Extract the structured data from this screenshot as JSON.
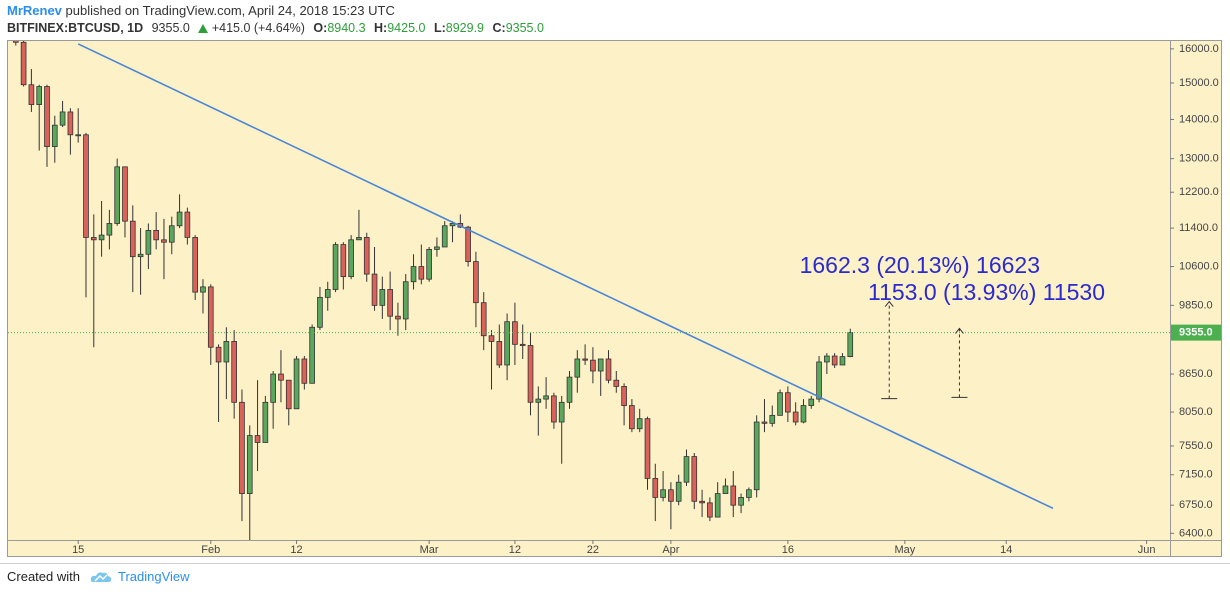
{
  "header": {
    "author": "MrRenev",
    "published": "published on TradingView.com, April 24, 2018 15:23 UTC",
    "symbol": "BITFINEX:BTCUSD, 1D",
    "last": "9355.0",
    "change": "+415.0 (+4.64%)",
    "o_key": "O:",
    "o": "8940.3",
    "h_key": "H:",
    "h": "9425.0",
    "l_key": "L:",
    "l": "8929.9",
    "c_key": "C:",
    "c": "9355.0"
  },
  "footer": {
    "created": "Created with",
    "brand": "TradingView"
  },
  "chart_data": {
    "type": "candlestick",
    "log_scale": true,
    "grid": false,
    "up_color": "#5aa85e",
    "down_color": "#d9625b",
    "border_color": "#333333",
    "trend_color": "#4a86d8",
    "last_color": "#4caf50",
    "measure_color": "#2a2ad0",
    "xlim": [
      "2018-01-06",
      "2018-06-04"
    ],
    "ylim": [
      6320,
      16270
    ],
    "yticks": [
      {
        "value": 16000,
        "label": "16000.0"
      },
      {
        "value": 15000,
        "label": "15000.0"
      },
      {
        "value": 14000,
        "label": "14000.0"
      },
      {
        "value": 13000,
        "label": "13000.0"
      },
      {
        "value": 12200,
        "label": "12200.0"
      },
      {
        "value": 11400,
        "label": "11400.0"
      },
      {
        "value": 10600,
        "label": "10600.0"
      },
      {
        "value": 9850,
        "label": "9850.0"
      },
      {
        "value": 8650,
        "label": "8650.0"
      },
      {
        "value": 8050,
        "label": "8050.0"
      },
      {
        "value": 7550,
        "label": "7550.0"
      },
      {
        "value": 7150,
        "label": "7150.0"
      },
      {
        "value": 6750,
        "label": "6750.0"
      },
      {
        "value": 6400,
        "label": "6400.0"
      }
    ],
    "xticks": [
      {
        "value": "2018-01-15",
        "label": "15"
      },
      {
        "value": "2018-02-01",
        "label": "Feb"
      },
      {
        "value": "2018-02-12",
        "label": "12"
      },
      {
        "value": "2018-03-01",
        "label": "Mar"
      },
      {
        "value": "2018-03-12",
        "label": "12"
      },
      {
        "value": "2018-03-22",
        "label": "22"
      },
      {
        "value": "2018-04-01",
        "label": "Apr"
      },
      {
        "value": "2018-04-16",
        "label": "16"
      },
      {
        "value": "2018-05-01",
        "label": "May"
      },
      {
        "value": "2018-05-14",
        "label": "14"
      },
      {
        "value": "2018-06-01",
        "label": "Jun"
      }
    ],
    "x": [
      "2018-01-07",
      "2018-01-08",
      "2018-01-09",
      "2018-01-10",
      "2018-01-11",
      "2018-01-12",
      "2018-01-13",
      "2018-01-14",
      "2018-01-15",
      "2018-01-16",
      "2018-01-17",
      "2018-01-18",
      "2018-01-19",
      "2018-01-20",
      "2018-01-21",
      "2018-01-22",
      "2018-01-23",
      "2018-01-24",
      "2018-01-25",
      "2018-01-26",
      "2018-01-27",
      "2018-01-28",
      "2018-01-29",
      "2018-01-30",
      "2018-01-31",
      "2018-02-01",
      "2018-02-02",
      "2018-02-03",
      "2018-02-04",
      "2018-02-05",
      "2018-02-06",
      "2018-02-07",
      "2018-02-08",
      "2018-02-09",
      "2018-02-10",
      "2018-02-11",
      "2018-02-12",
      "2018-02-13",
      "2018-02-14",
      "2018-02-15",
      "2018-02-16",
      "2018-02-17",
      "2018-02-18",
      "2018-02-19",
      "2018-02-20",
      "2018-02-21",
      "2018-02-22",
      "2018-02-23",
      "2018-02-24",
      "2018-02-25",
      "2018-02-26",
      "2018-02-27",
      "2018-02-28",
      "2018-03-01",
      "2018-03-02",
      "2018-03-03",
      "2018-03-04",
      "2018-03-05",
      "2018-03-06",
      "2018-03-07",
      "2018-03-08",
      "2018-03-09",
      "2018-03-10",
      "2018-03-11",
      "2018-03-12",
      "2018-03-13",
      "2018-03-14",
      "2018-03-15",
      "2018-03-16",
      "2018-03-17",
      "2018-03-18",
      "2018-03-19",
      "2018-03-20",
      "2018-03-21",
      "2018-03-22",
      "2018-03-23",
      "2018-03-24",
      "2018-03-25",
      "2018-03-26",
      "2018-03-27",
      "2018-03-28",
      "2018-03-29",
      "2018-03-30",
      "2018-03-31",
      "2018-04-01",
      "2018-04-02",
      "2018-04-03",
      "2018-04-04",
      "2018-04-05",
      "2018-04-06",
      "2018-04-07",
      "2018-04-08",
      "2018-04-09",
      "2018-04-10",
      "2018-04-11",
      "2018-04-12",
      "2018-04-13",
      "2018-04-14",
      "2018-04-15",
      "2018-04-16",
      "2018-04-17",
      "2018-04-18",
      "2018-04-19",
      "2018-04-20",
      "2018-04-21",
      "2018-04-22",
      "2018-04-23",
      "2018-04-24"
    ],
    "open": [
      17150,
      16200,
      14950,
      14400,
      14900,
      13300,
      13850,
      14200,
      13600,
      13600,
      11200,
      11150,
      11250,
      11500,
      12800,
      11550,
      10800,
      10850,
      11350,
      11150,
      11100,
      11450,
      11750,
      11200,
      10100,
      10200,
      9100,
      8850,
      9200,
      8200,
      6900,
      7700,
      7600,
      8200,
      8650,
      8550,
      8100,
      8900,
      8500,
      9450,
      10000,
      10150,
      11050,
      10400,
      11150,
      11200,
      10450,
      9850,
      10150,
      9650,
      9600,
      10300,
      10600,
      10350,
      10950,
      11000,
      11450,
      11500,
      11420,
      10700,
      9900,
      9300,
      9200,
      8800,
      9550,
      9150,
      9130,
      8200,
      8250,
      8300,
      7900,
      8200,
      8600,
      8900,
      8880,
      8700,
      8900,
      8550,
      8450,
      8150,
      7800,
      7950,
      7100,
      6850,
      6950,
      6800,
      7050,
      7400,
      6800,
      6780,
      6600,
      6900,
      7000,
      6750,
      6850,
      6950,
      7900,
      7880,
      8000,
      8350,
      8050,
      7900,
      8150,
      8250,
      8850,
      8950,
      8800,
      8940.3
    ],
    "high": [
      17250,
      16300,
      15400,
      14950,
      14950,
      14100,
      14500,
      14300,
      14300,
      13650,
      11700,
      12000,
      11800,
      13000,
      12800,
      11900,
      11400,
      11500,
      11750,
      11600,
      11650,
      12150,
      11850,
      11250,
      10350,
      10250,
      9150,
      9450,
      9400,
      8400,
      7850,
      8550,
      8300,
      8700,
      9050,
      8550,
      8950,
      8950,
      9500,
      10200,
      10300,
      11100,
      11100,
      11250,
      11800,
      11300,
      11000,
      10400,
      10500,
      9900,
      10450,
      10850,
      11050,
      11000,
      11200,
      11550,
      11550,
      11700,
      11450,
      10900,
      10100,
      9400,
      9500,
      9700,
      9900,
      9500,
      9350,
      8450,
      8600,
      8350,
      8300,
      8700,
      9050,
      9150,
      9100,
      8900,
      9050,
      8700,
      8500,
      8250,
      8100,
      7980,
      7300,
      7200,
      7050,
      7150,
      7500,
      7450,
      6950,
      6850,
      7050,
      7100,
      7200,
      6900,
      6980,
      8000,
      8250,
      8150,
      8400,
      8450,
      8200,
      8250,
      8300,
      8950,
      9000,
      9000,
      9000,
      9425
    ],
    "low": [
      16100,
      14900,
      14200,
      13200,
      12800,
      12900,
      13800,
      13100,
      13400,
      10000,
      9100,
      10800,
      10950,
      11450,
      11200,
      10100,
      10050,
      10550,
      10950,
      10350,
      10850,
      11400,
      11050,
      9950,
      9700,
      8800,
      7900,
      8250,
      7950,
      6550,
      5950,
      7200,
      7600,
      7800,
      8200,
      7850,
      8100,
      8400,
      8500,
      9400,
      9750,
      10100,
      10150,
      10350,
      11150,
      10300,
      9750,
      9600,
      9400,
      9300,
      9400,
      10150,
      10250,
      10300,
      10800,
      11000,
      11100,
      11400,
      10600,
      9450,
      9050,
      8400,
      8750,
      8550,
      8800,
      8900,
      8000,
      7700,
      8100,
      7800,
      7300,
      8100,
      8350,
      8800,
      8500,
      8300,
      8500,
      8350,
      7850,
      7750,
      7750,
      6950,
      6550,
      6800,
      6450,
      6750,
      7000,
      6700,
      6600,
      6550,
      6600,
      6900,
      6600,
      6650,
      6800,
      6850,
      7750,
      7830,
      8000,
      7900,
      7850,
      7880,
      8100,
      8200,
      8650,
      8750,
      8800,
      8929.9
    ],
    "close": [
      16200,
      14950,
      14400,
      14900,
      13300,
      13850,
      14200,
      13600,
      13600,
      11200,
      11150,
      11250,
      11500,
      12800,
      11550,
      10800,
      10850,
      11350,
      11150,
      11100,
      11450,
      11750,
      11200,
      10100,
      10200,
      9100,
      8850,
      9200,
      8200,
      6900,
      7700,
      7600,
      8200,
      8650,
      8550,
      8100,
      8900,
      8500,
      9450,
      10000,
      10150,
      11050,
      10400,
      11150,
      11200,
      10450,
      9850,
      10150,
      9650,
      9600,
      10300,
      10600,
      10350,
      10950,
      11000,
      11450,
      11500,
      11420,
      10700,
      9900,
      9300,
      9200,
      8800,
      9550,
      9150,
      9130,
      8200,
      8250,
      8300,
      7900,
      8200,
      8600,
      8900,
      8880,
      8700,
      8900,
      8550,
      8450,
      8150,
      7800,
      7950,
      7100,
      6850,
      6950,
      6800,
      7050,
      7400,
      6800,
      6780,
      6600,
      6900,
      7000,
      6750,
      6850,
      6950,
      7900,
      7880,
      8000,
      8350,
      8050,
      7900,
      8150,
      8250,
      8850,
      8950,
      8800,
      8940.3,
      9355
    ],
    "trendline": {
      "x": [
        "2018-01-15",
        "2018-05-20"
      ],
      "values": [
        16150,
        6710
      ]
    },
    "measures": [
      {
        "x": "2018-04-29",
        "from": 8258,
        "to": 9920.3,
        "label": "1662.3 (20.13%) 16623"
      },
      {
        "x": "2018-05-08",
        "from": 8277,
        "to": 9430,
        "label": "1153.0 (13.93%) 11530"
      }
    ]
  }
}
